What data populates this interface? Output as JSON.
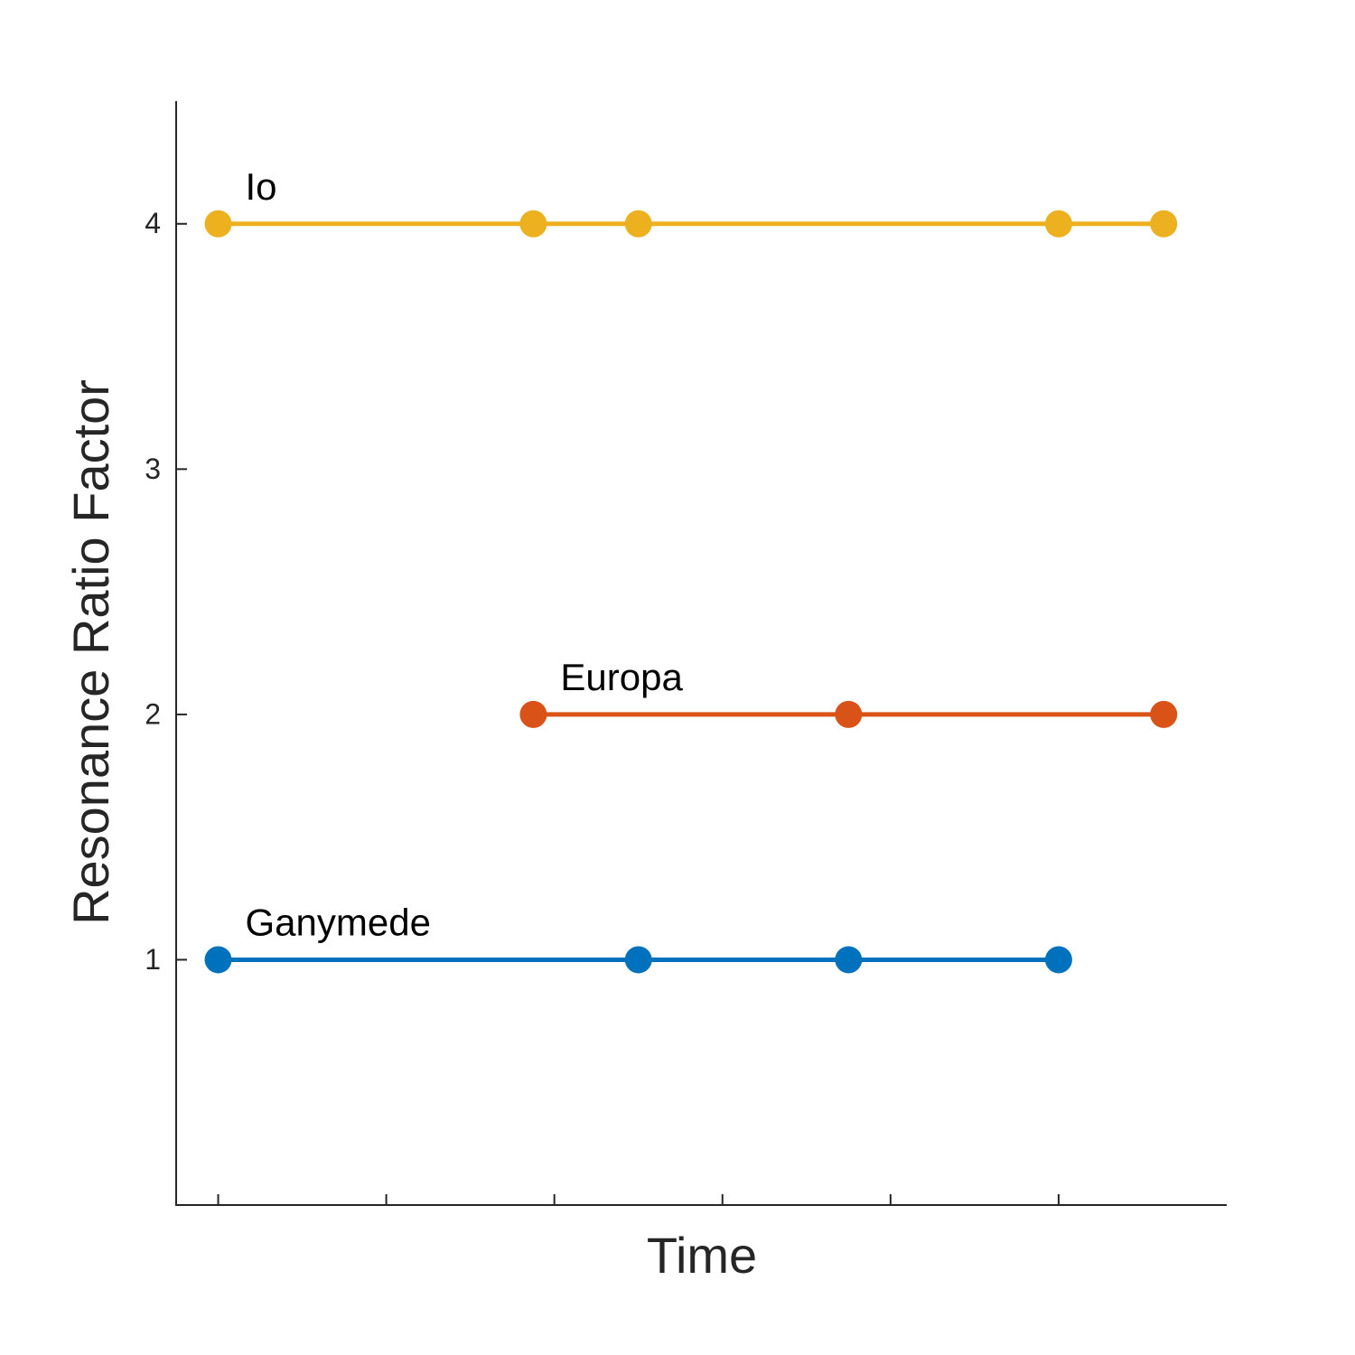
{
  "chart_data": {
    "type": "line",
    "x_label": "Time",
    "y_label": "Resonance Ratio Factor",
    "xlim": [
      -0.25,
      6
    ],
    "xticks": [
      0,
      1,
      2,
      3,
      4,
      5
    ],
    "ylim": [
      0,
      4.5
    ],
    "yticks": [
      1,
      2,
      3,
      4
    ],
    "grid": false,
    "series": [
      {
        "name": "Io",
        "color": "#EDB120",
        "x": [
          0,
          1.875,
          2.5,
          5,
          5.625
        ],
        "values": [
          4,
          4,
          4,
          4,
          4
        ]
      },
      {
        "name": "Europa",
        "color": "#D95319",
        "x": [
          1.875,
          3.75,
          5.625
        ],
        "values": [
          2,
          2,
          2
        ]
      },
      {
        "name": "Ganymede",
        "color": "#0072BD",
        "x": [
          0,
          2.5,
          3.75,
          5
        ],
        "values": [
          1,
          1,
          1,
          1
        ]
      }
    ]
  }
}
